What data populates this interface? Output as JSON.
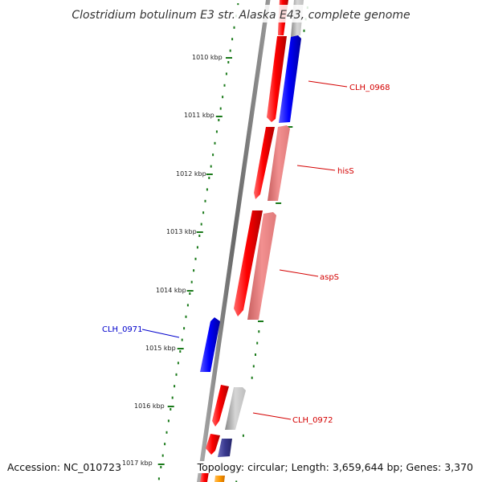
{
  "title": "Clostridium botulinum E3 str. Alaska E43, complete genome",
  "footer": {
    "accession": "Accession: NC_010723",
    "topology": "Topology: circular; Length: 3,659,644 bp; Genes: 3,370"
  },
  "scale_ticks": [
    {
      "label": "1010 kbp"
    },
    {
      "label": "1011 kbp"
    },
    {
      "label": "1012 kbp"
    },
    {
      "label": "1013 kbp"
    },
    {
      "label": "1014 kbp"
    },
    {
      "label": "1015 kbp"
    },
    {
      "label": "1016 kbp"
    },
    {
      "label": "1017 kbp"
    }
  ],
  "gene_labels": [
    {
      "name": "CLH_0968",
      "color": "#d40000"
    },
    {
      "name": "hisS",
      "color": "#d40000"
    },
    {
      "name": "aspS",
      "color": "#d40000"
    },
    {
      "name": "CLH_0971",
      "color": "#0000cc"
    },
    {
      "name": "CLH_0972",
      "color": "#d40000"
    }
  ],
  "colors": {
    "backbone": "#7a7a7a",
    "tick": "#1a7a1a",
    "gene_red": "#ff0000",
    "gene_blue": "#0000ff",
    "gene_pink": "#ee8080",
    "gene_gray": "#c0c0c0",
    "gene_navy": "#3a3a90",
    "gene_orange": "#ff9a00"
  }
}
